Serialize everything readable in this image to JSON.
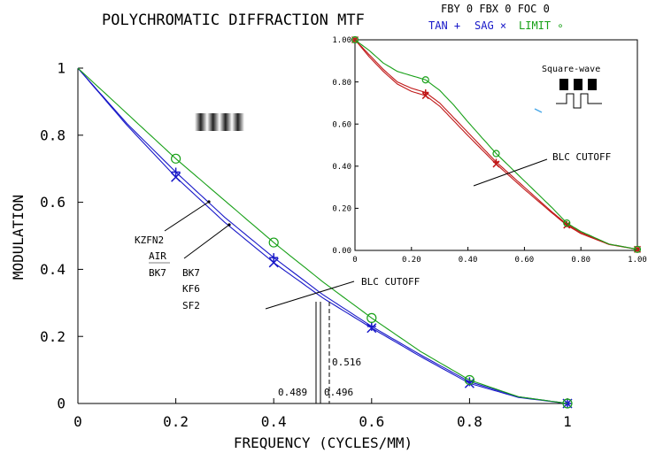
{
  "header": {
    "title": "POLYCHROMATIC DIFFRACTION MTF",
    "field_line": "FBY 0 FBX 0 FOC 0",
    "legend_tan": "TAN +",
    "legend_sag": "SAG ×",
    "legend_limit": "LIMIT ∘"
  },
  "colors": {
    "tan": "#1818c8",
    "sag": "#1818c8",
    "limit": "#18a018",
    "inset_tan": "#c01818",
    "inset_sag": "#c01818",
    "inset_limit": "#18a018",
    "axis": "#000000"
  },
  "annotations": {
    "glass_group1": [
      "KZFN2",
      "AIR",
      "BK7"
    ],
    "glass_group2": [
      "BK7",
      "KF6",
      "SF2"
    ],
    "cutoff_main": "BLC CUTOFF",
    "cutoff_inset": "BLC CUTOFF",
    "square_wave": "Square-wave",
    "cutoff_a": "0.489",
    "cutoff_b": "0.496",
    "cutoff_c": "0.516"
  },
  "chart_data": [
    {
      "type": "line",
      "xlabel": "FREQUENCY (CYCLES/MM)",
      "ylabel": "MODULATION",
      "xlim": [
        0,
        1
      ],
      "ylim": [
        0,
        1
      ],
      "x_ticks": [
        "0",
        "0.2",
        "0.4",
        "0.6",
        "0.8",
        "1"
      ],
      "y_ticks": [
        "0",
        "0.2",
        "0.4",
        "0.6",
        "0.8",
        "1"
      ],
      "grid": false,
      "series": [
        {
          "name": "TAN",
          "role": "tan",
          "x": [
            0,
            0.1,
            0.2,
            0.3,
            0.4,
            0.5,
            0.6,
            0.7,
            0.8,
            0.9,
            1.0
          ],
          "y": [
            1.0,
            0.835,
            0.69,
            0.555,
            0.435,
            0.325,
            0.23,
            0.145,
            0.065,
            0.02,
            0.0
          ],
          "markers_at": [
            0.2,
            0.4,
            0.6,
            0.8,
            1.0
          ]
        },
        {
          "name": "SAG",
          "role": "sag",
          "x": [
            0,
            0.1,
            0.2,
            0.3,
            0.4,
            0.5,
            0.6,
            0.7,
            0.8,
            0.9,
            1.0
          ],
          "y": [
            1.0,
            0.83,
            0.675,
            0.54,
            0.42,
            0.315,
            0.225,
            0.14,
            0.06,
            0.018,
            0.0
          ],
          "markers_at": [
            0.2,
            0.4,
            0.6,
            0.8,
            1.0
          ]
        },
        {
          "name": "LIMIT",
          "role": "limit",
          "x": [
            0,
            0.1,
            0.2,
            0.3,
            0.4,
            0.5,
            0.6,
            0.7,
            0.8,
            0.9,
            1.0
          ],
          "y": [
            1.0,
            0.865,
            0.73,
            0.605,
            0.48,
            0.363,
            0.255,
            0.155,
            0.07,
            0.02,
            0.0
          ],
          "markers_at": [
            0.2,
            0.4,
            0.6,
            0.8,
            1.0
          ]
        }
      ]
    },
    {
      "type": "line",
      "xlabel": "",
      "ylabel": "",
      "xlim": [
        0,
        1
      ],
      "ylim": [
        0,
        1
      ],
      "x_ticks": [
        "0",
        "0.20",
        "0.40",
        "0.60",
        "0.80",
        "1.00"
      ],
      "y_ticks": [
        "0.00",
        "0.20",
        "0.40",
        "0.60",
        "0.80",
        "1.00"
      ],
      "grid": false,
      "series": [
        {
          "name": "TAN",
          "role": "inset_tan",
          "x": [
            0,
            0.05,
            0.1,
            0.15,
            0.2,
            0.25,
            0.3,
            0.35,
            0.4,
            0.5,
            0.6,
            0.7,
            0.75,
            0.8,
            0.9,
            1.0
          ],
          "y": [
            1.0,
            0.93,
            0.86,
            0.8,
            0.77,
            0.75,
            0.7,
            0.63,
            0.56,
            0.42,
            0.3,
            0.18,
            0.125,
            0.085,
            0.03,
            0.005
          ],
          "markers_at": [
            0,
            0.25,
            0.5,
            0.75,
            1.0
          ]
        },
        {
          "name": "SAG",
          "role": "inset_sag",
          "x": [
            0,
            0.05,
            0.1,
            0.15,
            0.2,
            0.25,
            0.3,
            0.35,
            0.4,
            0.5,
            0.6,
            0.7,
            0.75,
            0.8,
            0.9,
            1.0
          ],
          "y": [
            1.0,
            0.92,
            0.85,
            0.79,
            0.755,
            0.735,
            0.685,
            0.615,
            0.545,
            0.41,
            0.29,
            0.175,
            0.12,
            0.08,
            0.028,
            0.005
          ],
          "markers_at": [
            0,
            0.25,
            0.5,
            0.75,
            1.0
          ]
        },
        {
          "name": "LIMIT",
          "role": "inset_limit",
          "x": [
            0,
            0.05,
            0.1,
            0.15,
            0.2,
            0.25,
            0.3,
            0.35,
            0.4,
            0.5,
            0.6,
            0.7,
            0.75,
            0.8,
            0.9,
            1.0
          ],
          "y": [
            1.0,
            0.95,
            0.89,
            0.85,
            0.83,
            0.81,
            0.76,
            0.69,
            0.61,
            0.46,
            0.33,
            0.2,
            0.13,
            0.09,
            0.03,
            0.005
          ],
          "markers_at": [
            0,
            0.25,
            0.5,
            0.75,
            1.0
          ]
        }
      ]
    }
  ]
}
